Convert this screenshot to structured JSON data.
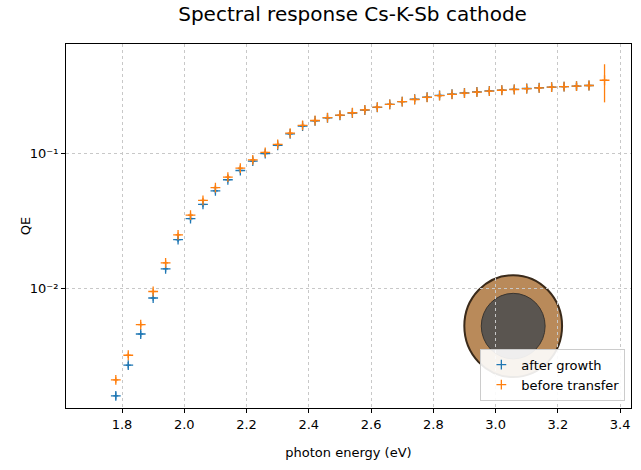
{
  "chart_data": {
    "type": "scatter",
    "title": "Spectral response Cs-K-Sb cathode",
    "x_label": "photon energy (eV)",
    "y_label": "QE",
    "log": "y",
    "grid": true,
    "legend": "lower right",
    "marker": "cross",
    "xlim": [
      1.62,
      3.435
    ],
    "ylim": [
      0.0013,
      0.65
    ],
    "xticks": [
      1.8,
      {
        "value": 2,
        "label": "2.0"
      },
      2.2,
      2.4,
      2.6,
      2.8,
      {
        "value": 3,
        "label": "3.0"
      },
      3.2,
      3.4
    ],
    "yticks": [
      {
        "value": 0.01,
        "label": "10⁻²"
      },
      {
        "value": 0.1,
        "label": "10⁻¹"
      }
    ],
    "series": [
      {
        "name": "after growth",
        "color": "#1f77b4",
        "x": [
          1.78,
          1.82,
          1.86,
          1.9,
          1.94,
          1.98,
          2.02,
          2.06,
          2.1,
          2.14,
          2.18,
          2.22,
          2.26,
          2.3,
          2.34,
          2.38,
          2.42,
          2.46,
          2.5,
          2.54,
          2.58,
          2.62,
          2.66,
          2.7,
          2.74,
          2.78,
          2.82,
          2.86,
          2.9,
          2.94,
          2.98,
          3.02,
          3.06,
          3.1,
          3.14,
          3.18,
          3.22,
          3.26,
          3.3
        ],
        "values": [
          0.0016,
          0.0027,
          0.0046,
          0.0085,
          0.014,
          0.023,
          0.033,
          0.042,
          0.053,
          0.064,
          0.075,
          0.088,
          0.1,
          0.115,
          0.14,
          0.16,
          0.175,
          0.184,
          0.192,
          0.2,
          0.21,
          0.22,
          0.232,
          0.243,
          0.253,
          0.262,
          0.27,
          0.276,
          0.282,
          0.287,
          0.292,
          0.296,
          0.3,
          0.304,
          0.308,
          0.311,
          0.314,
          0.317,
          0.32
        ],
        "x_error": 0.008,
        "y_error": [
          0.0001,
          0.00015,
          0.00025,
          0.0004,
          0.0007,
          0.001,
          0.0015,
          0.002,
          0.0025,
          0.003,
          0.0035,
          0.004,
          0.0045,
          0.005,
          0.006,
          0.007,
          0.007,
          0.008,
          0.008,
          0.008,
          0.009,
          0.009,
          0.01,
          0.01,
          0.011,
          0.011,
          0.012,
          0.012,
          0.012,
          0.013,
          0.013,
          0.013,
          0.014,
          0.014,
          0.015,
          0.016,
          0.017,
          0.018,
          0.02
        ]
      },
      {
        "name": "before transfer",
        "color": "#ff7f0e",
        "x": [
          1.78,
          1.82,
          1.86,
          1.9,
          1.94,
          1.98,
          2.02,
          2.06,
          2.1,
          2.14,
          2.18,
          2.22,
          2.26,
          2.3,
          2.34,
          2.38,
          2.42,
          2.46,
          2.5,
          2.54,
          2.58,
          2.62,
          2.66,
          2.7,
          2.74,
          2.78,
          2.82,
          2.86,
          2.9,
          2.94,
          2.98,
          3.02,
          3.06,
          3.1,
          3.14,
          3.18,
          3.22,
          3.26,
          3.3,
          3.35
        ],
        "values": [
          0.0021,
          0.0032,
          0.0054,
          0.0095,
          0.0155,
          0.025,
          0.035,
          0.045,
          0.056,
          0.067,
          0.078,
          0.09,
          0.102,
          0.117,
          0.142,
          0.162,
          0.176,
          0.185,
          0.193,
          0.201,
          0.211,
          0.221,
          0.232,
          0.243,
          0.252,
          0.261,
          0.269,
          0.275,
          0.281,
          0.286,
          0.291,
          0.295,
          0.299,
          0.303,
          0.307,
          0.311,
          0.314,
          0.317,
          0.32,
          0.35
        ],
        "x_error": 0.008,
        "y_error": [
          0.0001,
          0.00015,
          0.00025,
          0.0004,
          0.0007,
          0.001,
          0.0015,
          0.002,
          0.0025,
          0.003,
          0.0035,
          0.004,
          0.0045,
          0.005,
          0.006,
          0.007,
          0.007,
          0.008,
          0.008,
          0.008,
          0.009,
          0.009,
          0.01,
          0.01,
          0.011,
          0.011,
          0.012,
          0.012,
          0.012,
          0.013,
          0.013,
          0.013,
          0.014,
          0.014,
          0.015,
          0.016,
          0.017,
          0.018,
          0.02,
          0.11
        ]
      }
    ]
  }
}
